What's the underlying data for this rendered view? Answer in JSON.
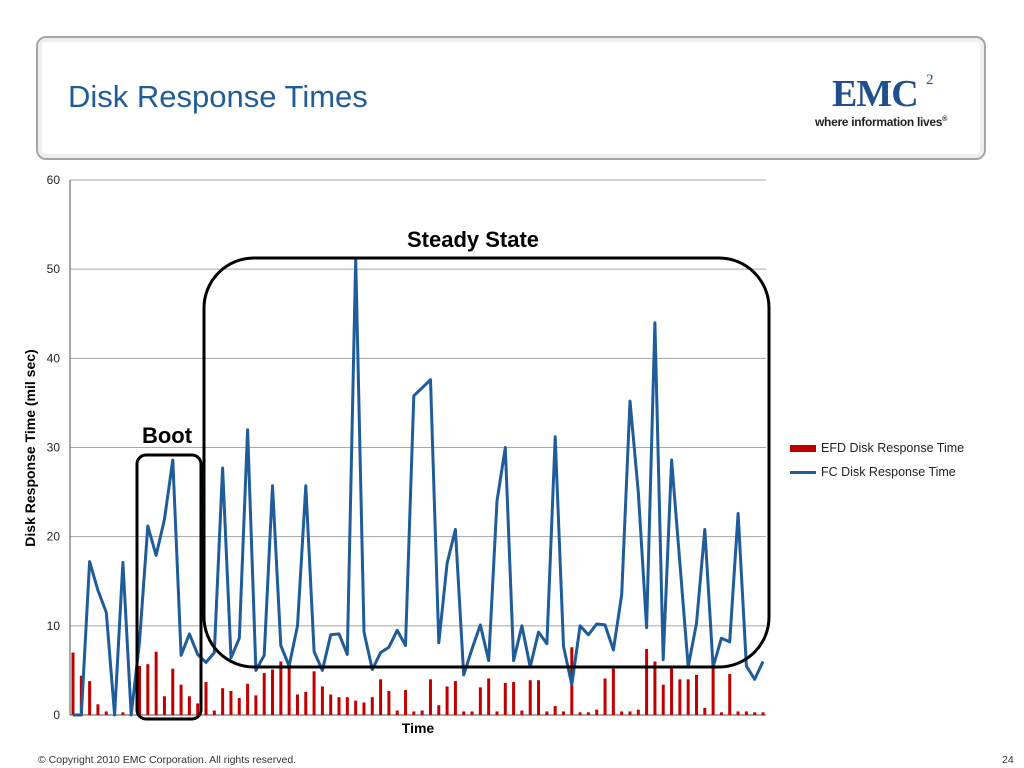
{
  "slide": {
    "title": "Disk Response Times",
    "logo": {
      "wordmark": "EMC",
      "superscript": "2",
      "tagline": "where information lives",
      "registered": "®"
    },
    "footer": {
      "copyright": "© Copyright 2010 EMC Corporation. All rights reserved.",
      "page_number": "24"
    }
  },
  "colors": {
    "title": "#1f5c99",
    "efd": "#c00000",
    "fc": "#1f5c99",
    "gridline": "#a6a6a6",
    "annotation_box": "#000000"
  },
  "chart_data": {
    "type": "bar",
    "xlabel": "Time",
    "ylabel": "Disk Response Time (mil sec)",
    "ylim": [
      0,
      60
    ],
    "yticks": [
      0,
      10,
      20,
      30,
      40,
      50,
      60
    ],
    "grid": true,
    "legend_position": "right",
    "annotations": [
      "Boot",
      "Steady State"
    ],
    "series": [
      {
        "name": "EFD Disk Response Time",
        "mark": "bar",
        "color": "#c00000",
        "values": [
          7.0,
          4.4,
          3.8,
          1.2,
          0.4,
          0,
          0.3,
          0,
          5.5,
          5.7,
          7.1,
          2.1,
          5.2,
          3.4,
          2.1,
          1.3,
          3.7,
          0.5,
          3.0,
          2.7,
          1.9,
          3.5,
          2.2,
          4.7,
          5.1,
          6.0,
          5.4,
          2.3,
          2.6,
          4.9,
          3.2,
          2.3,
          2.0,
          2.0,
          1.6,
          1.4,
          2.0,
          4.0,
          2.7,
          0.5,
          2.8,
          0.4,
          0.5,
          4.0,
          1.1,
          3.2,
          3.8,
          0.4,
          0.4,
          3.1,
          4.1,
          0.4,
          3.6,
          3.7,
          0.5,
          3.9,
          3.9,
          0.4,
          1.0,
          0.4,
          7.6,
          0.3,
          0.3,
          0.6,
          4.1,
          5.2,
          0.4,
          0.4,
          0.6,
          7.4,
          6.0,
          3.4,
          5.5,
          4.0,
          4.0,
          4.5,
          0.8,
          5.4,
          0.3,
          4.6,
          0.4,
          0.4,
          0.3,
          0.3
        ]
      },
      {
        "name": "FC Disk Response Time",
        "mark": "line",
        "color": "#1f5c99",
        "values": [
          0,
          0,
          17.2,
          14.0,
          11.5,
          0,
          17.1,
          0,
          8.2,
          21.2,
          17.9,
          21.9,
          28.6,
          6.7,
          9.1,
          6.8,
          5.9,
          7.0,
          27.7,
          6.4,
          8.6,
          32.0,
          5.0,
          6.7,
          25.7,
          7.8,
          5.5,
          10.0,
          25.7,
          7.1,
          5.0,
          9.0,
          9.1,
          6.8,
          51.2,
          9.3,
          5.1,
          7.0,
          7.6,
          9.5,
          7.8,
          35.8,
          36.7,
          37.6,
          8.1,
          17.0,
          20.8,
          4.5,
          7.4,
          10.1,
          6.1,
          24.0,
          30.0,
          6.1,
          10.0,
          5.4,
          9.3,
          8.0,
          31.2,
          7.7,
          3.4,
          10.0,
          9.0,
          10.2,
          10.1,
          7.3,
          13.5,
          35.2,
          25.0,
          9.8,
          44.0,
          6.2,
          28.6,
          17.0,
          5.4,
          10.3,
          20.8,
          5.4,
          8.6,
          8.2,
          22.6,
          5.5,
          4.0,
          6.0
        ]
      }
    ]
  }
}
